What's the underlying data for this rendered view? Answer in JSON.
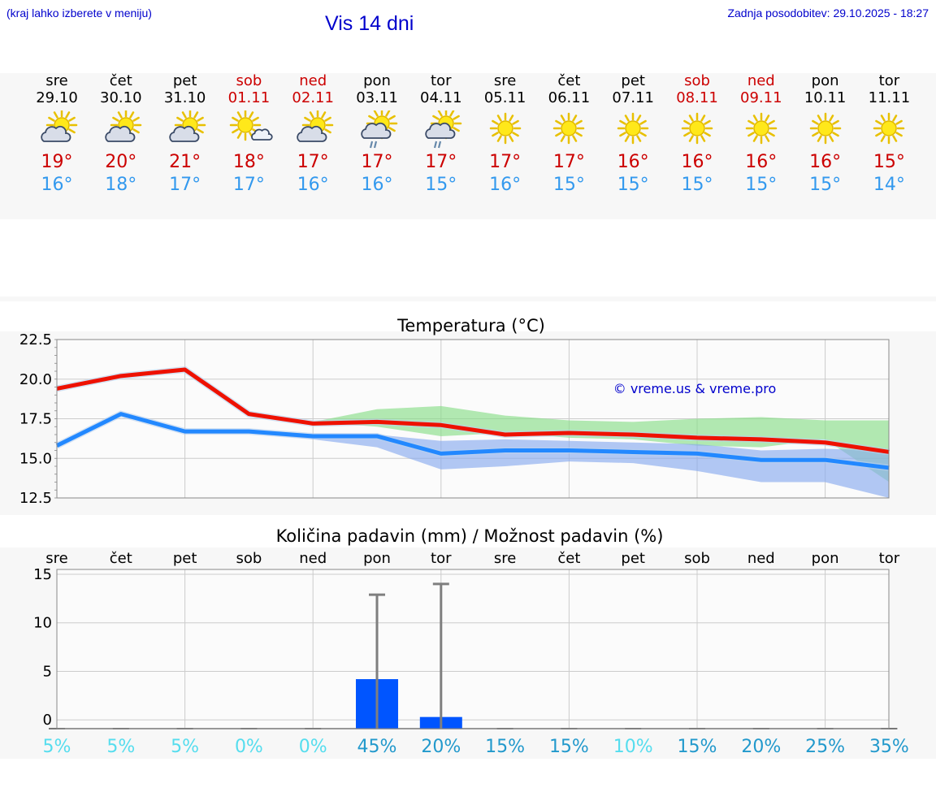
{
  "header": {
    "left_note": "(kraj lahko izberete v meniju)",
    "title": "Vis 14 dni",
    "updated": "Zadnja posodobitev: 29.10.2025 - 18:27"
  },
  "colors": {
    "max_temp": "#ee1100",
    "min_temp": "#2288ff",
    "max_spread": "#88dd88",
    "min_spread": "#88aaee",
    "bar": "#0055ff",
    "prob_low": "#55ddee",
    "prob_high": "#2299cc"
  },
  "days": [
    {
      "name": "sre",
      "date": "29.10",
      "weekend": false,
      "icon": "partly-cloudy-icon",
      "max": "19°",
      "min": "16°"
    },
    {
      "name": "čet",
      "date": "30.10",
      "weekend": false,
      "icon": "partly-cloudy-icon",
      "max": "20°",
      "min": "18°"
    },
    {
      "name": "pet",
      "date": "31.10",
      "weekend": false,
      "icon": "partly-cloudy-icon",
      "max": "21°",
      "min": "17°"
    },
    {
      "name": "sob",
      "date": "01.11",
      "weekend": true,
      "icon": "sun-small-cloud-icon",
      "max": "18°",
      "min": "17°"
    },
    {
      "name": "ned",
      "date": "02.11",
      "weekend": true,
      "icon": "partly-cloudy-icon",
      "max": "17°",
      "min": "16°"
    },
    {
      "name": "pon",
      "date": "03.11",
      "weekend": false,
      "icon": "sun-cloud-rain-icon",
      "max": "17°",
      "min": "16°"
    },
    {
      "name": "tor",
      "date": "04.11",
      "weekend": false,
      "icon": "sun-cloud-rain-icon",
      "max": "17°",
      "min": "15°"
    },
    {
      "name": "sre",
      "date": "05.11",
      "weekend": false,
      "icon": "sun-icon",
      "max": "17°",
      "min": "16°"
    },
    {
      "name": "čet",
      "date": "06.11",
      "weekend": false,
      "icon": "sun-icon",
      "max": "17°",
      "min": "15°"
    },
    {
      "name": "pet",
      "date": "07.11",
      "weekend": false,
      "icon": "sun-icon",
      "max": "16°",
      "min": "15°"
    },
    {
      "name": "sob",
      "date": "08.11",
      "weekend": true,
      "icon": "sun-icon",
      "max": "16°",
      "min": "15°"
    },
    {
      "name": "ned",
      "date": "09.11",
      "weekend": true,
      "icon": "sun-icon",
      "max": "16°",
      "min": "15°"
    },
    {
      "name": "pon",
      "date": "10.11",
      "weekend": false,
      "icon": "sun-icon",
      "max": "16°",
      "min": "15°"
    },
    {
      "name": "tor",
      "date": "11.11",
      "weekend": false,
      "icon": "sun-icon",
      "max": "15°",
      "min": "14°"
    }
  ],
  "chart_data": [
    {
      "type": "line",
      "title": "Temperatura (°C)",
      "watermark": "© vreme.us & vreme.pro",
      "ylim": [
        12.5,
        22.5
      ],
      "yticks": [
        "22.5",
        "20.0",
        "17.5",
        "15.0",
        "12.5"
      ],
      "x": [
        0,
        1,
        2,
        3,
        4,
        5,
        6,
        7,
        8,
        9,
        10,
        11,
        12,
        13
      ],
      "series": [
        {
          "name": "max",
          "values": [
            19.4,
            20.2,
            20.6,
            17.8,
            17.2,
            17.3,
            17.1,
            16.5,
            16.6,
            16.5,
            16.3,
            16.2,
            16.0,
            15.4
          ],
          "band_low": [
            19.4,
            20.1,
            20.5,
            17.7,
            17.3,
            17.0,
            16.4,
            16.6,
            16.3,
            16.2,
            15.8,
            15.7,
            16.2,
            13.5
          ],
          "band_high": [
            19.4,
            20.3,
            20.6,
            17.9,
            17.3,
            18.1,
            18.3,
            17.7,
            17.4,
            17.3,
            17.5,
            17.6,
            17.4,
            17.4
          ]
        },
        {
          "name": "min",
          "values": [
            15.8,
            17.8,
            16.7,
            16.7,
            16.4,
            16.4,
            15.3,
            15.5,
            15.5,
            15.4,
            15.3,
            14.9,
            14.9,
            14.4
          ],
          "band_low": [
            15.8,
            17.7,
            16.6,
            16.6,
            16.2,
            15.7,
            14.3,
            14.5,
            14.8,
            14.7,
            14.2,
            13.5,
            13.5,
            12.5
          ],
          "band_high": [
            15.8,
            17.9,
            16.8,
            16.7,
            16.5,
            16.5,
            16.1,
            16.2,
            16.1,
            16.0,
            15.9,
            15.5,
            15.6,
            15.5
          ]
        }
      ]
    },
    {
      "type": "bar",
      "title": "Količina padavin (mm) / Možnost padavin (%)",
      "categories": [
        "sre",
        "čet",
        "pet",
        "sob",
        "ned",
        "pon",
        "tor",
        "sre",
        "čet",
        "pet",
        "sob",
        "ned",
        "pon",
        "tor"
      ],
      "ylim": [
        -0.9,
        15.5
      ],
      "yticks": [
        "15",
        "10",
        "5",
        "0"
      ],
      "values": [
        0,
        0,
        0,
        0,
        0,
        4.2,
        0.3,
        0,
        0,
        0,
        0,
        0,
        0,
        0
      ],
      "error_high": [
        0,
        0,
        0,
        0,
        0,
        12.9,
        14.0,
        0,
        0,
        0,
        0,
        0,
        0,
        0
      ],
      "probabilities": [
        "5%",
        "5%",
        "5%",
        "0%",
        "0%",
        "45%",
        "20%",
        "15%",
        "15%",
        "10%",
        "15%",
        "20%",
        "25%",
        "35%"
      ]
    }
  ]
}
